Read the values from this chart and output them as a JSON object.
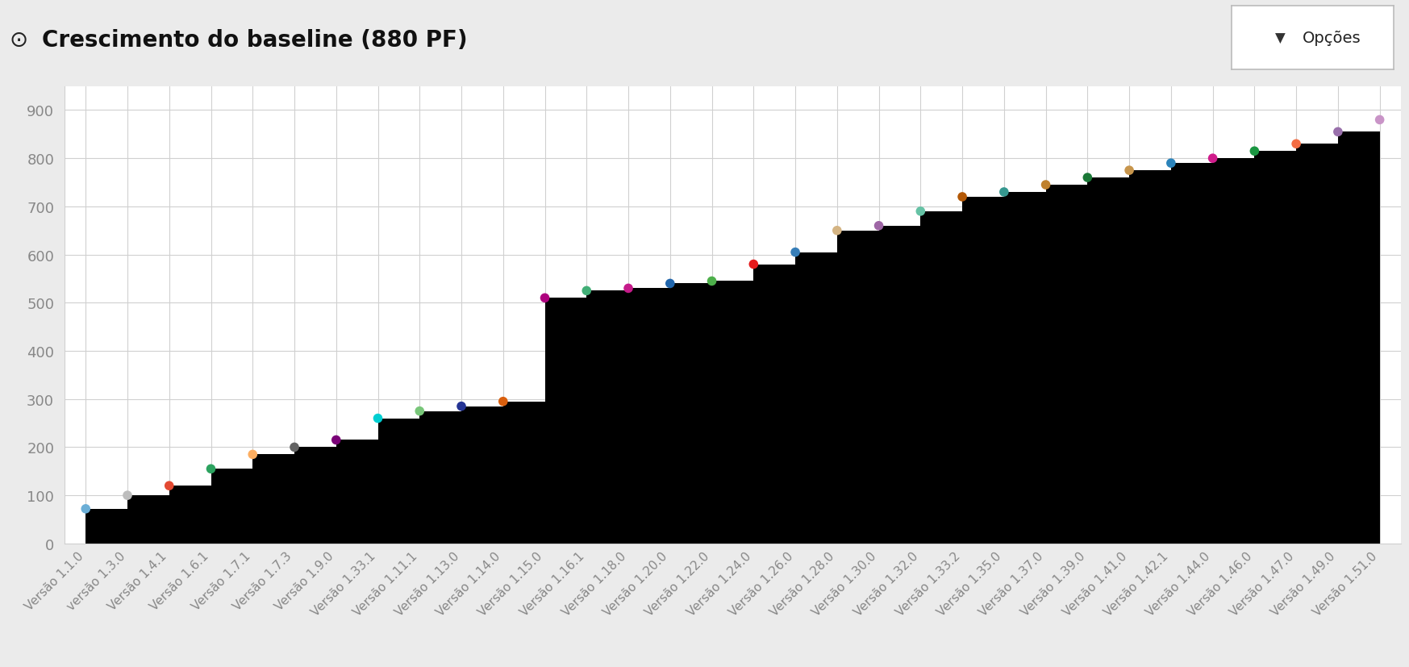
{
  "title": "Crescimento do baseline (880 PF)",
  "background_color": "#f5f5f5",
  "chart_bg": "#ffffff",
  "versions": [
    "Versão 1.1.0",
    "versão 1.3.0",
    "Versão 1.4.1",
    "Versão 1.6.1",
    "Versão 1.7.1",
    "Versão 1.7.3",
    "Versão 1.9.0",
    "Versão 1.33.1",
    "Versão 1.11.1",
    "Versão 1.13.0",
    "Versão 1.14.0",
    "Versão 1.15.0",
    "Versão 1.16.1",
    "Versão 1.18.0",
    "Versão 1.20.0",
    "Versão 1.22.0",
    "Versão 1.24.0",
    "Versão 1.26.0",
    "Versão 1.28.0",
    "Versão 1.30.0",
    "Versão 1.32.0",
    "Versão 1.33.2",
    "Versão 1.35.0",
    "Versão 1.37.0",
    "Versão 1.39.0",
    "Versão 1.41.0",
    "Versão 1.42.1",
    "Versão 1.44.0",
    "Versão 1.46.0",
    "Versão 1.47.0",
    "Versão 1.49.0",
    "Versão 1.51.0"
  ],
  "values": [
    72,
    100,
    120,
    155,
    185,
    200,
    215,
    260,
    275,
    285,
    295,
    510,
    525,
    530,
    540,
    545,
    580,
    605,
    650,
    660,
    690,
    720,
    730,
    745,
    760,
    775,
    790,
    800,
    815,
    830,
    855,
    880
  ],
  "dot_colors": [
    "#6baed6",
    "#bdbdbd",
    "#e34a33",
    "#2ca25f",
    "#fdae61",
    "#636363",
    "#7a0177",
    "#00ced1",
    "#78c679",
    "#253494",
    "#d95f0e",
    "#ae017e",
    "#41ae76",
    "#c51b8a",
    "#2166ac",
    "#4daf4a",
    "#e41a1c",
    "#377eb8",
    "#d4b483",
    "#9e66a5",
    "#66c2a5",
    "#b35806",
    "#35978f",
    "#bf812d",
    "#1b7837",
    "#c7954c",
    "#2b83ba",
    "#d01c8b",
    "#1a9641",
    "#f46d43",
    "#9970ab",
    "#c994c7"
  ],
  "ylim": [
    0,
    950
  ],
  "yticks": [
    0,
    100,
    200,
    300,
    400,
    500,
    600,
    700,
    800,
    900
  ],
  "fill_color": "#000000",
  "dot_size": 70,
  "grid_color": "#d0d0d0",
  "tick_color": "#888888",
  "tick_fontsize": 13,
  "xlabel_fontsize": 11,
  "header_bg": "#ebebeb",
  "separator_color": "#cccccc"
}
